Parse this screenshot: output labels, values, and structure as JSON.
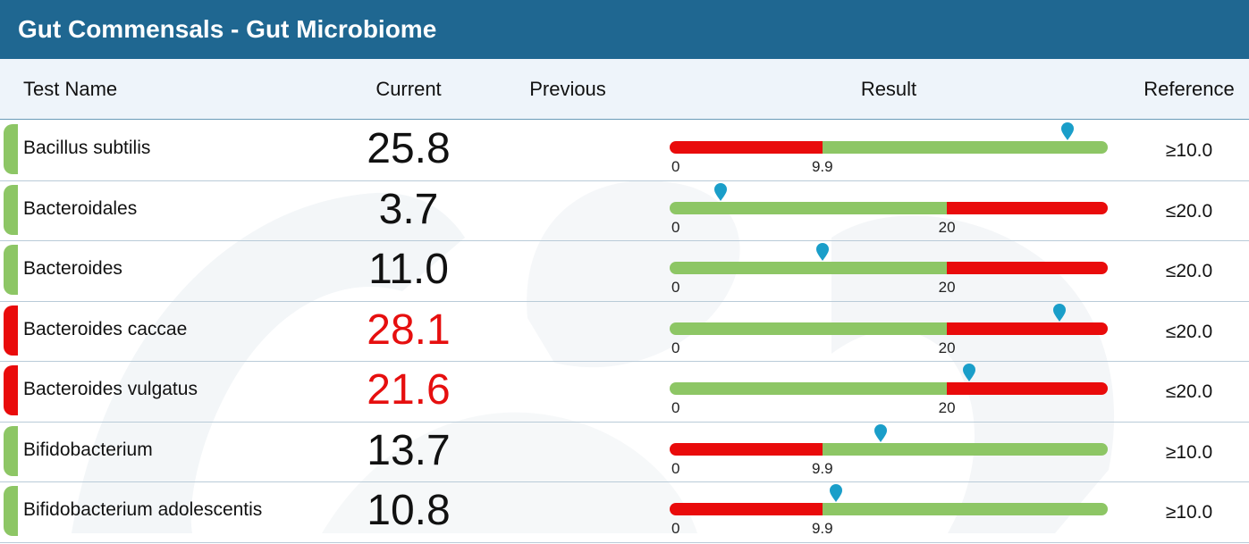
{
  "header": {
    "title": "Gut Commensals - Gut Microbiome"
  },
  "columns": {
    "test_name": "Test Name",
    "current": "Current",
    "previous": "Previous",
    "result": "Result",
    "reference": "Reference"
  },
  "colors": {
    "header_bg": "#1f6791",
    "normal": "#8dc665",
    "abnormal": "#e90b0b",
    "marker": "#1a9ec9"
  },
  "rows": [
    {
      "name": "Bacillus subtilis",
      "current": "25.8",
      "current_value": 25.8,
      "status": "normal",
      "reference": "≥10.0",
      "direction": "min",
      "cutoff": 9.9,
      "cutoff_label": "9.9",
      "zero_label": "0",
      "scale_max": 28.4
    },
    {
      "name": "Bacteroidales",
      "current": "3.7",
      "current_value": 3.7,
      "status": "normal",
      "reference": "≤20.0",
      "direction": "max",
      "cutoff": 20,
      "cutoff_label": "20",
      "zero_label": "0",
      "scale_max": 31.6
    },
    {
      "name": "Bacteroides",
      "current": "11.0",
      "current_value": 11.0,
      "status": "normal",
      "reference": "≤20.0",
      "direction": "max",
      "cutoff": 20,
      "cutoff_label": "20",
      "zero_label": "0",
      "scale_max": 31.6
    },
    {
      "name": "Bacteroides caccae",
      "current": "28.1",
      "current_value": 28.1,
      "status": "abnormal",
      "reference": "≤20.0",
      "direction": "max",
      "cutoff": 20,
      "cutoff_label": "20",
      "zero_label": "0",
      "scale_max": 31.6
    },
    {
      "name": "Bacteroides vulgatus",
      "current": "21.6",
      "current_value": 21.6,
      "status": "abnormal",
      "reference": "≤20.0",
      "direction": "max",
      "cutoff": 20,
      "cutoff_label": "20",
      "zero_label": "0",
      "scale_max": 31.6
    },
    {
      "name": "Bifidobacterium",
      "current": "13.7",
      "current_value": 13.7,
      "status": "normal",
      "reference": "≥10.0",
      "direction": "min",
      "cutoff": 9.9,
      "cutoff_label": "9.9",
      "zero_label": "0",
      "scale_max": 28.4
    },
    {
      "name": "Bifidobacterium adolescentis",
      "current": "10.8",
      "current_value": 10.8,
      "status": "normal",
      "reference": "≥10.0",
      "direction": "min",
      "cutoff": 9.9,
      "cutoff_label": "9.9",
      "zero_label": "0",
      "scale_max": 28.4
    }
  ]
}
